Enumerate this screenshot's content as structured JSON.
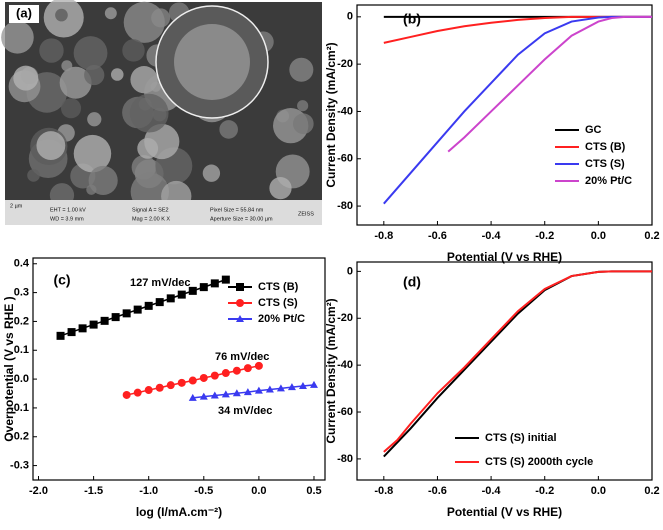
{
  "panel_a": {
    "label": "(a)",
    "info": [
      "EHT = 1.00 kV",
      "WD = 3.9 mm",
      "Signal A = SE2",
      "Mag = 2.00 K X",
      "Pixel Size = 55.84 nm",
      "Aperture Size = 30.00 µm",
      "2 µm",
      "ZEISS"
    ]
  },
  "chart_data": [
    {
      "type": "line",
      "label": "(b)",
      "xlabel": "Potential (V vs RHE)",
      "ylabel": "Current Density (mA/cm²)",
      "xlim": [
        -0.9,
        0.2
      ],
      "xticks": [
        -0.8,
        -0.6,
        -0.4,
        -0.2,
        {
          "value": 0,
          "label": "0.0"
        },
        0.2
      ],
      "ylim": [
        -88,
        5
      ],
      "yticks": [
        0,
        -20,
        -40,
        -60,
        -80
      ],
      "legend": "lower right",
      "series": [
        {
          "name": "GC",
          "color": "#000000",
          "x": [
            -0.8,
            0.2
          ],
          "values": [
            0,
            0
          ]
        },
        {
          "name": "CTS (B)",
          "color": "#ff2020",
          "x": [
            -0.8,
            -0.7,
            -0.6,
            -0.5,
            -0.4,
            -0.3,
            -0.2,
            -0.1,
            0.2
          ],
          "values": [
            -11,
            -8.5,
            -6,
            -4,
            -2.5,
            -1.3,
            -0.5,
            0,
            0
          ]
        },
        {
          "name": "CTS (S)",
          "color": "#3a3af0",
          "x": [
            -0.8,
            -0.7,
            -0.6,
            -0.5,
            -0.4,
            -0.3,
            -0.2,
            -0.1,
            0,
            0.05,
            0.2
          ],
          "values": [
            -79,
            -66,
            -53,
            -40,
            -28,
            -16,
            -7,
            -2,
            -0.3,
            0,
            0
          ]
        },
        {
          "name": "20% Pt/C",
          "color": "#cc44cc",
          "x": [
            -0.56,
            -0.5,
            -0.4,
            -0.3,
            -0.2,
            -0.1,
            0,
            0.05,
            0.1,
            0.2
          ],
          "values": [
            -57,
            -51,
            -40,
            -29,
            -18,
            -8,
            -2,
            -0.5,
            0,
            0
          ]
        }
      ]
    },
    {
      "type": "scatter",
      "label": "(c)",
      "xlabel": "log (I/mA.cm⁻²)",
      "ylabel": "Overpotential (V vs RHE )",
      "xlim": [
        -2.05,
        0.6
      ],
      "xticks": [
        {
          "value": -2,
          "label": "-2.0"
        },
        -1.5,
        {
          "value": -1,
          "label": "-1.0"
        },
        -0.5,
        {
          "value": 0,
          "label": "0.0"
        },
        0.5
      ],
      "ylim": [
        -0.35,
        0.42
      ],
      "yticks": [
        0.4,
        0.3,
        0.2,
        0.1,
        {
          "value": 0,
          "label": "0.0"
        },
        -0.1,
        -0.2,
        -0.3
      ],
      "legend": "upper right",
      "annotations": [
        "127 mV/dec",
        "76 mV/dec",
        "34 mV/dec"
      ],
      "series": [
        {
          "name": "CTS (B)",
          "color": "#000000",
          "marker": "square",
          "x": [
            -1.8,
            -1.7,
            -1.6,
            -1.5,
            -1.4,
            -1.3,
            -1.2,
            -1.1,
            -1.0,
            -0.9,
            -0.8,
            -0.7,
            -0.6,
            -0.5,
            -0.4,
            -0.3
          ],
          "values": [
            0.15,
            0.163,
            0.176,
            0.189,
            0.202,
            0.215,
            0.228,
            0.241,
            0.254,
            0.267,
            0.28,
            0.293,
            0.306,
            0.319,
            0.332,
            0.345
          ]
        },
        {
          "name": "CTS (S)",
          "color": "#ff2020",
          "marker": "circle",
          "x": [
            -1.2,
            -1.1,
            -1.0,
            -0.9,
            -0.8,
            -0.7,
            -0.6,
            -0.5,
            -0.4,
            -0.3,
            -0.2,
            -0.1,
            0.0
          ],
          "values": [
            -0.055,
            -0.047,
            -0.038,
            -0.03,
            -0.021,
            -0.013,
            -0.005,
            0.004,
            0.012,
            0.021,
            0.029,
            0.038,
            0.046
          ]
        },
        {
          "name": "20% Pt/C",
          "color": "#3a3af0",
          "marker": "triangle",
          "x": [
            -0.6,
            -0.5,
            -0.4,
            -0.3,
            -0.2,
            -0.1,
            0.0,
            0.1,
            0.2,
            0.3,
            0.4,
            0.5
          ],
          "values": [
            -0.065,
            -0.061,
            -0.057,
            -0.053,
            -0.049,
            -0.045,
            -0.04,
            -0.036,
            -0.032,
            -0.028,
            -0.024,
            -0.02
          ]
        }
      ]
    },
    {
      "type": "line",
      "label": "(d)",
      "xlabel": "Potential (V vs RHE)",
      "ylabel": "Current Density (mA/cm²)",
      "xlim": [
        -0.9,
        0.2
      ],
      "xticks": [
        -0.8,
        -0.6,
        -0.4,
        -0.2,
        {
          "value": 0,
          "label": "0.0"
        },
        0.2
      ],
      "ylim": [
        -89,
        4
      ],
      "yticks": [
        0,
        -20,
        -40,
        -60,
        -80
      ],
      "legend": "lower right",
      "series": [
        {
          "name": "CTS (S) initial",
          "color": "#000000",
          "x": [
            -0.8,
            -0.7,
            -0.6,
            -0.5,
            -0.4,
            -0.3,
            -0.2,
            -0.1,
            0,
            0.05,
            0.2
          ],
          "values": [
            -79,
            -67,
            -54,
            -42,
            -30,
            -18,
            -8,
            -2,
            -0.2,
            0,
            0
          ]
        },
        {
          "name": "CTS (S) 2000th cycle",
          "color": "#ff2020",
          "x": [
            -0.8,
            -0.75,
            -0.7,
            -0.6,
            -0.5,
            -0.4,
            -0.3,
            -0.2,
            -0.1,
            0,
            0.05,
            0.2
          ],
          "values": [
            -77,
            -72,
            -65,
            -52,
            -41,
            -29,
            -17,
            -7.5,
            -2,
            -0.2,
            0,
            0
          ]
        }
      ]
    }
  ]
}
